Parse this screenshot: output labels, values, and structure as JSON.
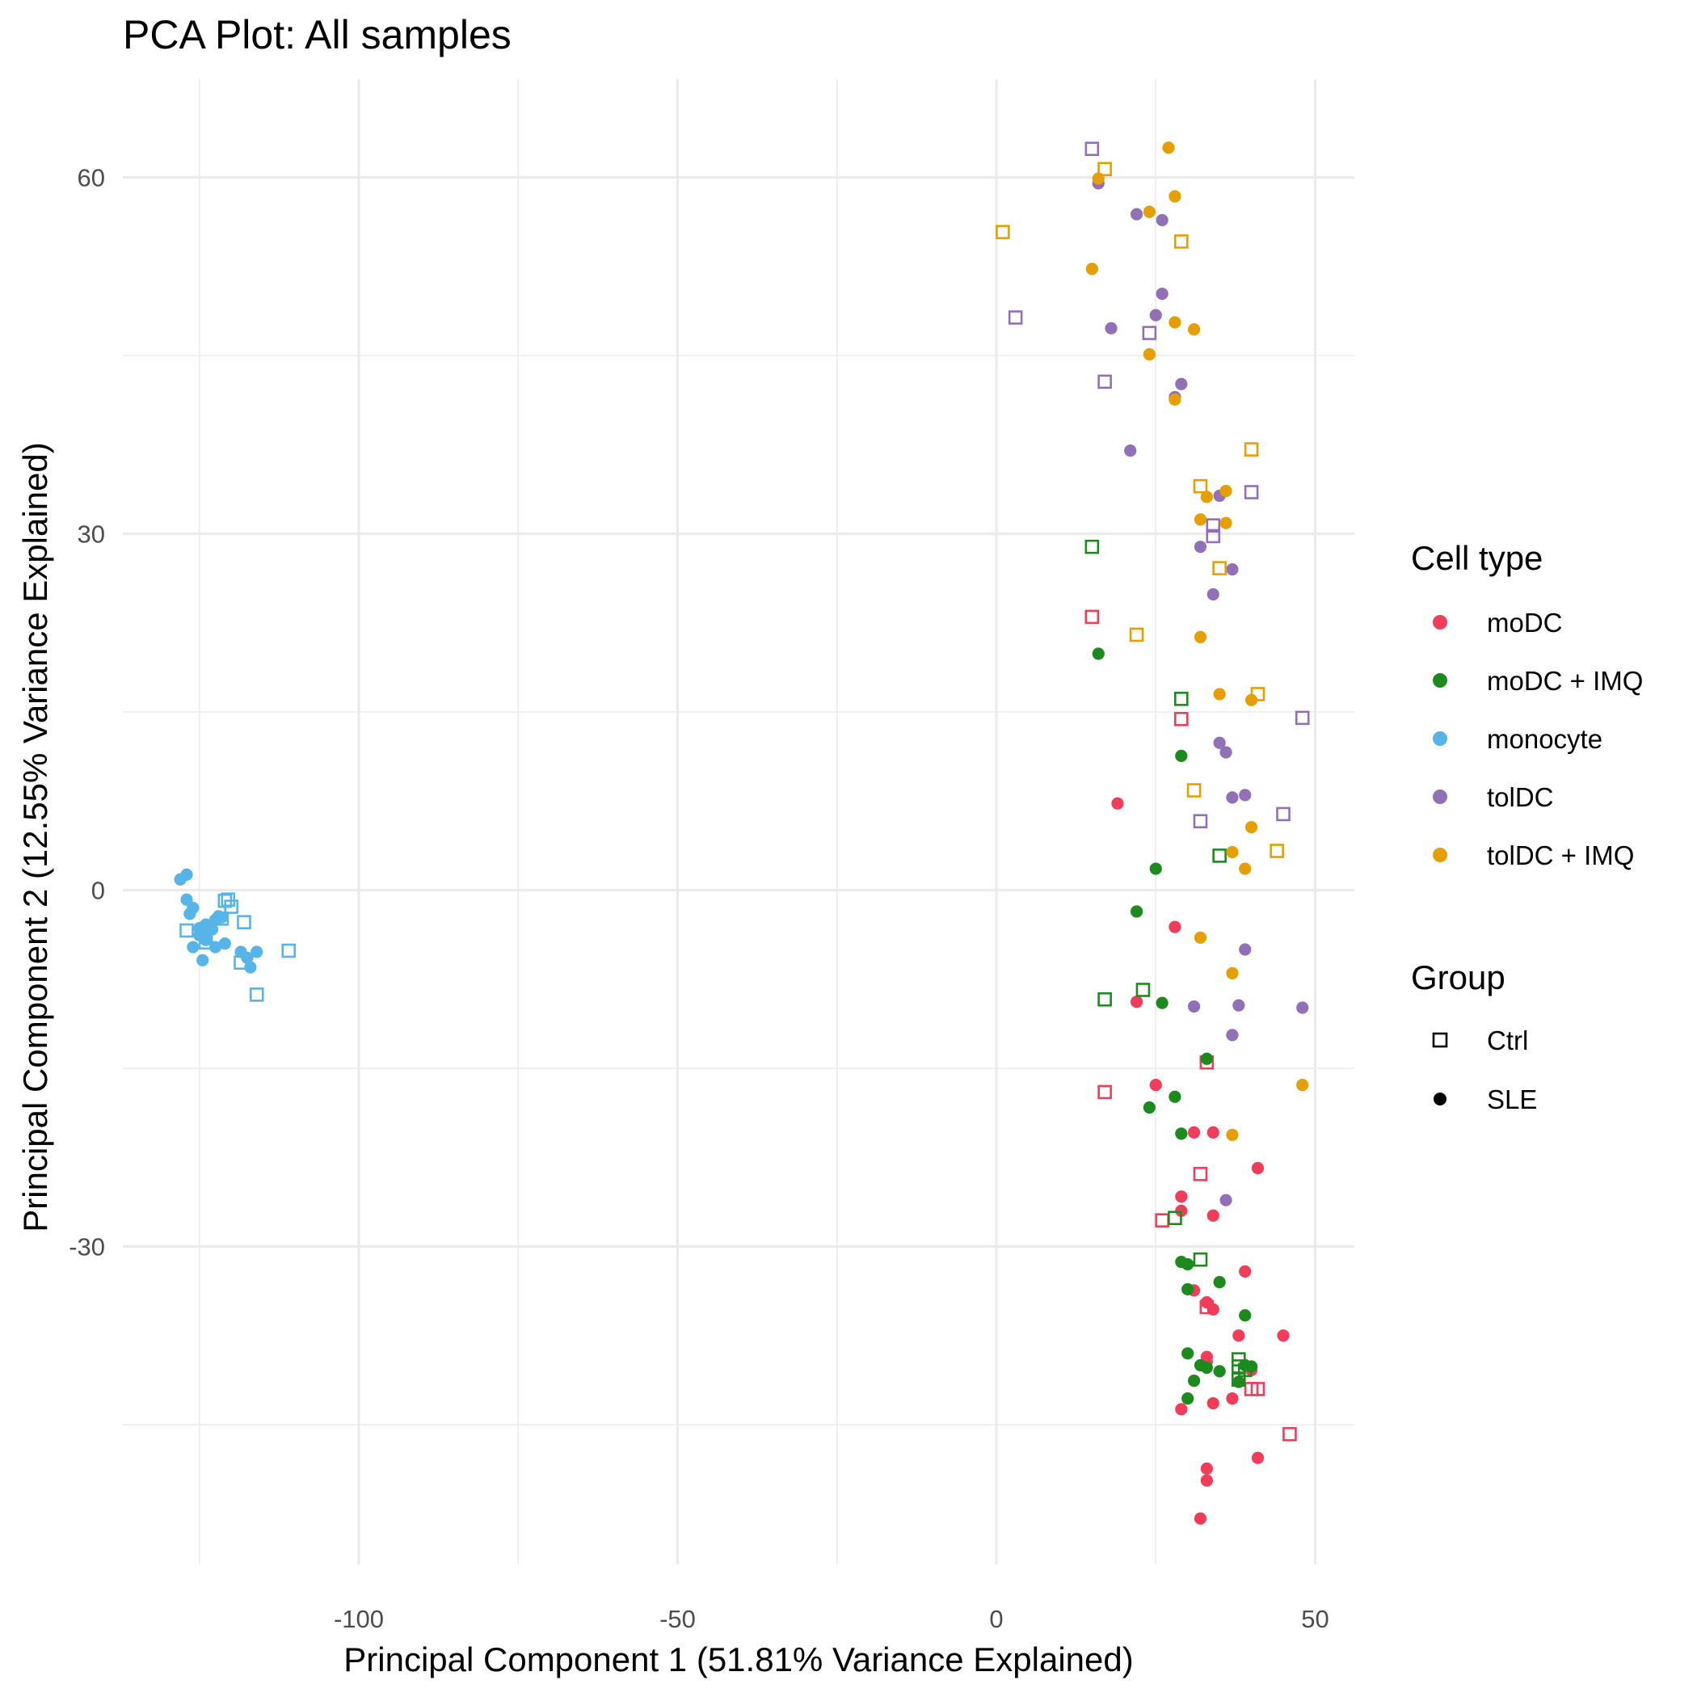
{
  "chart_data": {
    "type": "scatter",
    "title": "PCA Plot: All samples",
    "xlabel": "Principal Component 1 (51.81% Variance Explained)",
    "ylabel": "Principal Component 2 (12.55% Variance Explained)",
    "xlim": [
      -137,
      56
    ],
    "ylim": [
      -56,
      68
    ],
    "x_ticks": [
      -100,
      -50,
      0,
      50
    ],
    "y_ticks": [
      -30,
      0,
      30,
      60
    ],
    "grid": true,
    "legend_position": "right",
    "legends": [
      {
        "title": "Cell type",
        "entries": [
          {
            "label": "moDC",
            "color": "#F23D5A"
          },
          {
            "label": "moDC + IMQ",
            "color": "#1D8A1D"
          },
          {
            "label": "monocyte",
            "color": "#56B4E9"
          },
          {
            "label": "tolDC",
            "color": "#9270B8"
          },
          {
            "label": "tolDC + IMQ",
            "color": "#E69F00"
          }
        ]
      },
      {
        "title": "Group",
        "entries": [
          {
            "label": "Ctrl",
            "shape": "open-square"
          },
          {
            "label": "SLE",
            "shape": "filled-circle"
          }
        ]
      }
    ],
    "series": [
      {
        "cell_type": "monocyte",
        "group": "SLE",
        "points": [
          [
            -128,
            0.9
          ],
          [
            -127,
            1.3
          ],
          [
            -127,
            -0.8
          ],
          [
            -126.5,
            -2
          ],
          [
            -126,
            -1.5
          ],
          [
            -126,
            -4.8
          ],
          [
            -125,
            -3.8
          ],
          [
            -125,
            -3.2
          ],
          [
            -124.5,
            -5.9
          ],
          [
            -124,
            -3.5
          ],
          [
            -124,
            -4.2
          ],
          [
            -123,
            -3.3
          ],
          [
            -122.5,
            -2.5
          ],
          [
            -122.5,
            -4.8
          ],
          [
            -121.5,
            -2.3
          ],
          [
            -121,
            -4.5
          ],
          [
            -118.5,
            -5.2
          ],
          [
            -117.5,
            -5.7
          ],
          [
            -117,
            -6.5
          ],
          [
            -116,
            -5.2
          ],
          [
            -122,
            -2.2
          ],
          [
            -124,
            -2.9
          ]
        ]
      },
      {
        "cell_type": "monocyte",
        "group": "Ctrl",
        "points": [
          [
            -127,
            -3.4
          ],
          [
            -121,
            -0.9
          ],
          [
            -120.5,
            -0.8
          ],
          [
            -120,
            -1.4
          ],
          [
            -121.5,
            -2.4
          ],
          [
            -118,
            -2.7
          ],
          [
            -116,
            -8.8
          ],
          [
            -118.5,
            -6.1
          ],
          [
            -111,
            -5.1
          ],
          [
            -124,
            -4.4
          ]
        ]
      },
      {
        "cell_type": "moDC",
        "group": "SLE",
        "points": [
          [
            19,
            7.3
          ],
          [
            28,
            -3.1
          ],
          [
            22,
            -9.4
          ],
          [
            25,
            -16.4
          ],
          [
            31,
            -20.4
          ],
          [
            34,
            -20.4
          ],
          [
            41,
            -23.4
          ],
          [
            29,
            -25.8
          ],
          [
            29,
            -27
          ],
          [
            34,
            -27.4
          ],
          [
            39,
            -32.1
          ],
          [
            31,
            -33.7
          ],
          [
            33,
            -34.7
          ],
          [
            34,
            -35.3
          ],
          [
            38,
            -37.5
          ],
          [
            45,
            -37.5
          ],
          [
            33,
            -39.3
          ],
          [
            33,
            -39.7
          ],
          [
            40,
            -40.4
          ],
          [
            37,
            -42.8
          ],
          [
            29,
            -43.7
          ],
          [
            34,
            -43.2
          ],
          [
            41,
            -47.8
          ],
          [
            33,
            -48.7
          ],
          [
            33,
            -49.7
          ],
          [
            32,
            -52.9
          ]
        ]
      },
      {
        "cell_type": "moDC",
        "group": "Ctrl",
        "points": [
          [
            15,
            23
          ],
          [
            29,
            14.4
          ],
          [
            33,
            -14.5
          ],
          [
            17,
            -17
          ],
          [
            32,
            -23.9
          ],
          [
            26,
            -27.8
          ],
          [
            33,
            -35.1
          ],
          [
            40,
            -42
          ],
          [
            41,
            -42
          ],
          [
            46,
            -45.8
          ]
        ]
      },
      {
        "cell_type": "moDC + IMQ",
        "group": "SLE",
        "points": [
          [
            16,
            19.9
          ],
          [
            29,
            11.3
          ],
          [
            25,
            1.8
          ],
          [
            22,
            -1.8
          ],
          [
            26,
            -9.5
          ],
          [
            33,
            -14.2
          ],
          [
            28,
            -17.4
          ],
          [
            24,
            -18.3
          ],
          [
            29,
            -20.5
          ],
          [
            29,
            -31.3
          ],
          [
            30,
            -31.5
          ],
          [
            30,
            -33.6
          ],
          [
            35,
            -33
          ],
          [
            39,
            -35.8
          ],
          [
            30,
            -39
          ],
          [
            32,
            -40
          ],
          [
            33,
            -40.2
          ],
          [
            35,
            -40.5
          ],
          [
            39,
            -40
          ],
          [
            40,
            -40.1
          ],
          [
            31,
            -41.3
          ],
          [
            38,
            -41.4
          ],
          [
            30,
            -42.8
          ]
        ]
      },
      {
        "cell_type": "moDC + IMQ",
        "group": "Ctrl",
        "points": [
          [
            15,
            28.9
          ],
          [
            29,
            16.1
          ],
          [
            35,
            2.9
          ],
          [
            17,
            -9.2
          ],
          [
            23,
            -8.4
          ],
          [
            28,
            -27.6
          ],
          [
            32,
            -31.1
          ],
          [
            38,
            -39.5
          ],
          [
            38,
            -40.1
          ],
          [
            39,
            -40.4
          ],
          [
            38,
            -41.2
          ]
        ]
      },
      {
        "cell_type": "tolDC",
        "group": "SLE",
        "points": [
          [
            16,
            59.5
          ],
          [
            22,
            56.9
          ],
          [
            26,
            56.4
          ],
          [
            26,
            50.2
          ],
          [
            25,
            48.4
          ],
          [
            18,
            47.3
          ],
          [
            29,
            42.6
          ],
          [
            28,
            41.5
          ],
          [
            21,
            37
          ],
          [
            35,
            33.2
          ],
          [
            32,
            28.9
          ],
          [
            37,
            27
          ],
          [
            34,
            24.9
          ],
          [
            35,
            12.4
          ],
          [
            36,
            11.6
          ],
          [
            37,
            7.8
          ],
          [
            39,
            8
          ],
          [
            39,
            -5
          ],
          [
            31,
            -9.8
          ],
          [
            38,
            -9.7
          ],
          [
            48,
            -9.9
          ],
          [
            37,
            -12.2
          ],
          [
            36,
            -26.1
          ]
        ]
      },
      {
        "cell_type": "tolDC",
        "group": "Ctrl",
        "points": [
          [
            15,
            62.4
          ],
          [
            3,
            48.2
          ],
          [
            24,
            46.9
          ],
          [
            17,
            42.8
          ],
          [
            40,
            33.5
          ],
          [
            34,
            30.7
          ],
          [
            34,
            29.8
          ],
          [
            48,
            14.5
          ],
          [
            45,
            6.4
          ],
          [
            32,
            5.8
          ]
        ]
      },
      {
        "cell_type": "tolDC + IMQ",
        "group": "SLE",
        "points": [
          [
            27,
            62.5
          ],
          [
            16,
            59.9
          ],
          [
            28,
            58.4
          ],
          [
            24,
            57.1
          ],
          [
            15,
            52.3
          ],
          [
            28,
            47.8
          ],
          [
            31,
            47.2
          ],
          [
            24,
            45.1
          ],
          [
            28,
            41.3
          ],
          [
            36,
            33.6
          ],
          [
            33,
            33.1
          ],
          [
            32,
            31.2
          ],
          [
            36,
            30.9
          ],
          [
            32,
            21.3
          ],
          [
            35,
            16.5
          ],
          [
            40,
            16
          ],
          [
            40,
            5.3
          ],
          [
            37,
            3.2
          ],
          [
            39,
            1.8
          ],
          [
            32,
            -4
          ],
          [
            37,
            -7
          ],
          [
            48,
            -16.4
          ],
          [
            37,
            -20.6
          ]
        ]
      },
      {
        "cell_type": "tolDC + IMQ",
        "group": "Ctrl",
        "points": [
          [
            17,
            60.7
          ],
          [
            1,
            55.4
          ],
          [
            29,
            54.6
          ],
          [
            40,
            37.1
          ],
          [
            32,
            34
          ],
          [
            35,
            27.1
          ],
          [
            22,
            21.5
          ],
          [
            41,
            16.5
          ],
          [
            31,
            8.4
          ],
          [
            44,
            3.3
          ]
        ]
      }
    ]
  }
}
